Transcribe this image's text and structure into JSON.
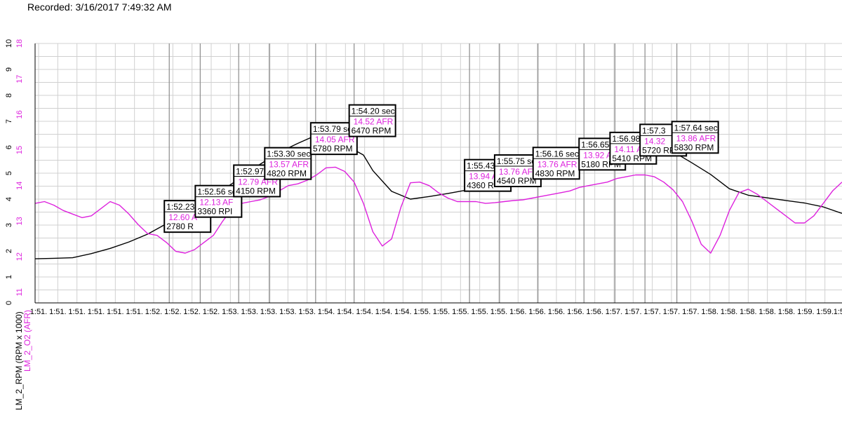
{
  "recorded": "Recorded: 3/16/2017 7:49:32 AM",
  "chart_data": {
    "type": "line",
    "colors": {
      "rpm": "#000000",
      "afr": "#dd22dd",
      "grid": "#d0d0d0",
      "marker": "#8c8c8c"
    },
    "ylabel_rpm": "LM_2_RPM (RPM x 1000)",
    "ylabel_afr": "LM_2_O2 (AFR)",
    "yticks_rpm": [
      "0",
      "1",
      "2",
      "3",
      "4",
      "5",
      "6",
      "7",
      "8",
      "9",
      "10"
    ],
    "yticks_afr": [
      "11",
      "12",
      "13",
      "14",
      "15",
      "16",
      "17",
      "18"
    ],
    "xticks": [
      "1:51.",
      "1:51.",
      "1:51.",
      "1:51.",
      "1:51.",
      "1:51.",
      "1:52.",
      "1:52.",
      "1:52.",
      "1:52.",
      "1:53.",
      "1:53.",
      "1:53.",
      "1:53.",
      "1:53.",
      "1:54.",
      "1:54.",
      "1:54.",
      "1:54.",
      "1:54.",
      "1:55.",
      "1:55.",
      "1:55.",
      "1:55.",
      "1:55.",
      "1:56.",
      "1:56.",
      "1:56.",
      "1:56.",
      "1:56.",
      "1:57.",
      "1:57.",
      "1:57.",
      "1:57.",
      "1:57.",
      "1:58.",
      "1:58.",
      "1:58.",
      "1:58.",
      "1:58.",
      "1:59.",
      "1:59.",
      "1:59.1"
    ],
    "xlim": [
      110.8,
      119.4
    ],
    "ylim_rpm": [
      0,
      10
    ],
    "ylim_afr": [
      10.7,
      18
    ],
    "series": [
      {
        "name": "LM_2_RPM",
        "x": [
          110.8,
          111.0,
          111.2,
          111.4,
          111.6,
          111.8,
          112.0,
          112.2,
          112.4,
          112.6,
          112.8,
          113.0,
          113.2,
          113.4,
          113.6,
          113.8,
          114.0,
          114.2,
          114.3,
          114.4,
          114.6,
          114.8,
          115.0,
          115.2,
          115.4,
          115.6,
          115.8,
          116.0,
          116.2,
          116.4,
          116.6,
          116.8,
          117.0,
          117.2,
          117.4,
          117.6,
          117.8,
          118.0,
          118.2,
          118.4,
          118.6,
          118.8,
          119.0,
          119.2,
          119.4
        ],
        "values": [
          1.7,
          1.72,
          1.74,
          1.9,
          2.1,
          2.35,
          2.65,
          3.05,
          3.45,
          3.9,
          4.35,
          4.85,
          5.35,
          5.8,
          6.15,
          6.47,
          6.3,
          5.9,
          5.7,
          5.1,
          4.3,
          4.0,
          4.1,
          4.22,
          4.35,
          4.5,
          4.67,
          4.82,
          4.98,
          5.12,
          5.28,
          5.44,
          5.6,
          5.75,
          5.85,
          5.83,
          5.4,
          4.95,
          4.4,
          4.15,
          4.05,
          3.95,
          3.85,
          3.7,
          3.45
        ]
      },
      {
        "name": "LM_2_O2",
        "x": [
          110.8,
          110.9,
          111.0,
          111.1,
          111.2,
          111.3,
          111.4,
          111.5,
          111.6,
          111.7,
          111.8,
          111.9,
          112.0,
          112.1,
          112.2,
          112.3,
          112.4,
          112.5,
          112.6,
          112.7,
          112.8,
          112.9,
          113.0,
          113.1,
          113.2,
          113.3,
          113.4,
          113.5,
          113.6,
          113.7,
          113.8,
          113.9,
          114.0,
          114.1,
          114.2,
          114.3,
          114.4,
          114.5,
          114.6,
          114.7,
          114.8,
          114.9,
          115.0,
          115.1,
          115.2,
          115.3,
          115.4,
          115.5,
          115.6,
          115.7,
          115.8,
          115.9,
          116.0,
          116.1,
          116.2,
          116.3,
          116.4,
          116.5,
          116.6,
          116.7,
          116.8,
          116.9,
          117.0,
          117.1,
          117.2,
          117.3,
          117.4,
          117.5,
          117.6,
          117.7,
          117.8,
          117.9,
          118.0,
          118.1,
          118.2,
          118.3,
          118.4,
          118.5,
          118.6,
          118.7,
          118.8,
          118.9,
          119.0,
          119.1,
          119.2,
          119.3,
          119.4
        ],
        "values": [
          13.5,
          13.55,
          13.45,
          13.3,
          13.2,
          13.1,
          13.15,
          13.35,
          13.55,
          13.45,
          13.2,
          12.9,
          12.65,
          12.6,
          12.4,
          12.15,
          12.1,
          12.2,
          12.4,
          12.6,
          13.0,
          13.35,
          13.5,
          13.55,
          13.6,
          13.7,
          13.85,
          14.0,
          14.05,
          14.15,
          14.3,
          14.5,
          14.52,
          14.4,
          14.1,
          13.5,
          12.7,
          12.3,
          12.5,
          13.4,
          14.08,
          14.1,
          14.0,
          13.8,
          13.65,
          13.55,
          13.55,
          13.55,
          13.5,
          13.52,
          13.55,
          13.58,
          13.6,
          13.65,
          13.7,
          13.75,
          13.8,
          13.85,
          13.95,
          14.0,
          14.05,
          14.1,
          14.2,
          14.25,
          14.3,
          14.3,
          14.25,
          14.1,
          13.88,
          13.55,
          13.0,
          12.35,
          12.1,
          12.6,
          13.3,
          13.8,
          13.9,
          13.75,
          13.55,
          13.35,
          13.15,
          12.95,
          12.95,
          13.15,
          13.5,
          13.85,
          14.1
        ]
      }
    ],
    "markers": [
      {
        "x": 112.23,
        "time": "1:52.23",
        "afr": "12.60 A",
        "rpm": "2780 R"
      },
      {
        "x": 112.56,
        "time": "1:52.56 se",
        "afr": "12.13 AF",
        "rpm": "3360 RPI"
      },
      {
        "x": 112.97,
        "time": "1:52.97 sec",
        "afr": "12.79 AFR",
        "rpm": "4150 RPM"
      },
      {
        "x": 113.3,
        "time": "1:53.30 sec",
        "afr": "13.57 AFR",
        "rpm": "4820 RPM"
      },
      {
        "x": 113.79,
        "time": "1:53.79 sec",
        "afr": "14.05 AFR",
        "rpm": "5780 RPM"
      },
      {
        "x": 114.2,
        "time": "1:54.20 sec",
        "afr": "14.52 AFR",
        "rpm": "6470 RPM"
      },
      {
        "x": 115.43,
        "time": "1:55.43",
        "afr": "13.94 A",
        "rpm": "4360 R"
      },
      {
        "x": 115.75,
        "time": "1:55.75 se",
        "afr": "13.76 AF",
        "rpm": "4540 RPM"
      },
      {
        "x": 116.16,
        "time": "1:56.16 sec",
        "afr": "13.76 AFR",
        "rpm": "4830 RPM"
      },
      {
        "x": 116.65,
        "time": "1:56.65",
        "afr": "13.92 AFR",
        "rpm": "5180 RPM"
      },
      {
        "x": 116.98,
        "time": "1:56.98 se",
        "afr": "14.11 AF",
        "rpm": "5410 RPM"
      },
      {
        "x": 117.3,
        "time": "1:57.3",
        "afr": "14.32",
        "rpm": "5720 RPM"
      },
      {
        "x": 117.64,
        "time": "1:57.64 sec",
        "afr": "13.86 AFR",
        "rpm": "5830 RPM"
      }
    ]
  }
}
